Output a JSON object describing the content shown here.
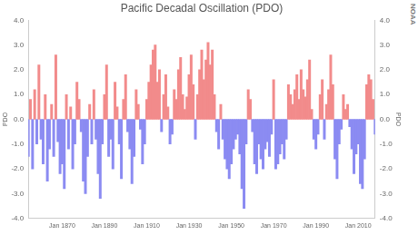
{
  "chart_data": {
    "type": "bar",
    "title": "Pacific Decadal Oscillation (PDO)",
    "y_label": "PDO",
    "y2_label": "PDO",
    "annotation": "NOAA",
    "grid": false,
    "categories": [
      null,
      null,
      null,
      null,
      null,
      null,
      null,
      null,
      null,
      null,
      null,
      null,
      null,
      null,
      null,
      null,
      "Jan 1870",
      null,
      null,
      null,
      null,
      null,
      null,
      null,
      null,
      null,
      null,
      null,
      null,
      null,
      null,
      null,
      null,
      null,
      null,
      null,
      "Jan 1890",
      null,
      null,
      null,
      null,
      null,
      null,
      null,
      null,
      null,
      null,
      null,
      null,
      null,
      null,
      null,
      null,
      null,
      null,
      null,
      "Jan 1910",
      null,
      null,
      null,
      null,
      null,
      null,
      null,
      null,
      null,
      null,
      null,
      null,
      null,
      null,
      null,
      null,
      null,
      null,
      null,
      "Jan 1930",
      null,
      null,
      null,
      null,
      null,
      null,
      null,
      null,
      null,
      null,
      null,
      null,
      null,
      null,
      null,
      null,
      null,
      null,
      null,
      "Jan 1950",
      null,
      null,
      null,
      null,
      null,
      null,
      null,
      null,
      null,
      null,
      null,
      null,
      null,
      null,
      null,
      null,
      null,
      null,
      null,
      "Jan 1970",
      null,
      null,
      null,
      null,
      null,
      null,
      null,
      null,
      null,
      null,
      null,
      null,
      null,
      null,
      null,
      null,
      null,
      null,
      null,
      "Jan 1990",
      null,
      null,
      null,
      null,
      null,
      null,
      null,
      null,
      null,
      null,
      null,
      null,
      null,
      null,
      null,
      null,
      null,
      null,
      null,
      "Jan 2010",
      null,
      null,
      null,
      null,
      null,
      null,
      null,
      null
    ],
    "values": [
      -1.5,
      0.8,
      -2.0,
      1.2,
      -1.0,
      2.2,
      -0.8,
      -1.8,
      1.0,
      -2.5,
      -1.2,
      0.6,
      -1.5,
      2.6,
      -0.9,
      -2.2,
      -1.8,
      -2.8,
      1.0,
      -1.2,
      0.5,
      -2.0,
      -1.0,
      1.5,
      0.8,
      -0.5,
      -2.5,
      -3.0,
      -1.5,
      0.6,
      -1.0,
      1.2,
      -0.8,
      -2.2,
      -3.2,
      -1.0,
      1.0,
      2.2,
      -1.5,
      -0.8,
      -2.0,
      1.5,
      0.5,
      -1.0,
      -2.4,
      0.8,
      1.8,
      -0.5,
      -1.2,
      -2.6,
      -1.5,
      1.2,
      0.6,
      -0.4,
      -1.8,
      -1.0,
      0.8,
      1.5,
      2.2,
      2.8,
      3.0,
      1.5,
      2.0,
      -0.5,
      1.0,
      1.8,
      0.5,
      -1.0,
      -0.6,
      1.2,
      0.8,
      2.0,
      2.5,
      1.0,
      0.4,
      0.9,
      1.8,
      2.6,
      1.4,
      -0.8,
      1.0,
      2.0,
      2.8,
      1.6,
      2.4,
      3.1,
      2.2,
      2.8,
      1.0,
      -0.5,
      -1.2,
      0.6,
      -0.8,
      -1.6,
      -2.0,
      -2.4,
      -1.8,
      -1.2,
      -0.8,
      -0.6,
      -1.4,
      -2.8,
      -3.6,
      -1.0,
      1.2,
      0.8,
      -0.5,
      -1.8,
      -2.2,
      -1.0,
      -1.6,
      -2.0,
      -1.2,
      -0.9,
      -1.5,
      -0.6,
      1.6,
      -2.0,
      -1.8,
      -1.4,
      -1.0,
      -1.6,
      -0.8,
      1.4,
      1.0,
      0.6,
      1.2,
      1.8,
      0.8,
      2.0,
      1.2,
      0.9,
      1.6,
      2.4,
      0.4,
      -0.8,
      -1.2,
      -0.6,
      1.0,
      1.6,
      -0.8,
      0.6,
      1.2,
      2.6,
      1.4,
      -1.6,
      -2.4,
      -1.0,
      -0.4,
      1.0,
      0.4,
      0.6,
      -0.3,
      -1.2,
      -2.2,
      -1.4,
      -1.0,
      -2.6,
      -2.8,
      -1.6,
      1.4,
      1.8,
      1.6,
      0.8,
      -0.6
    ],
    "colors": [
      "#8b8bf2",
      "#f28b8b",
      "#8b8bf2",
      "#f28b8b",
      "#8b8bf2",
      "#f28b8b",
      "#8b8bf2",
      "#8b8bf2",
      "#f28b8b",
      "#8b8bf2",
      "#8b8bf2",
      "#f28b8b",
      "#8b8bf2",
      "#f28b8b",
      "#8b8bf2",
      "#8b8bf2",
      "#8b8bf2",
      "#8b8bf2",
      "#f28b8b",
      "#8b8bf2",
      "#f28b8b",
      "#8b8bf2",
      "#8b8bf2",
      "#f28b8b",
      "#f28b8b",
      "#8b8bf2",
      "#8b8bf2",
      "#8b8bf2",
      "#8b8bf2",
      "#f28b8b",
      "#8b8bf2",
      "#f28b8b",
      "#8b8bf2",
      "#8b8bf2",
      "#8b8bf2",
      "#8b8bf2",
      "#f28b8b",
      "#f28b8b",
      "#8b8bf2",
      "#8b8bf2",
      "#8b8bf2",
      "#f28b8b",
      "#f28b8b",
      "#8b8bf2",
      "#8b8bf2",
      "#f28b8b",
      "#f28b8b",
      "#8b8bf2",
      "#8b8bf2",
      "#8b8bf2",
      "#8b8bf2",
      "#f28b8b",
      "#f28b8b",
      "#8b8bf2",
      "#8b8bf2",
      "#8b8bf2",
      "#f28b8b",
      "#f28b8b",
      "#f28b8b",
      "#f28b8b",
      "#f28b8b",
      "#f28b8b",
      "#f28b8b",
      "#8b8bf2",
      "#f28b8b",
      "#f28b8b",
      "#f28b8b",
      "#8b8bf2",
      "#8b8bf2",
      "#f28b8b",
      "#f28b8b",
      "#f28b8b",
      "#f28b8b",
      "#f28b8b",
      "#f28b8b",
      "#f28b8b",
      "#f28b8b",
      "#f28b8b",
      "#f28b8b",
      "#8b8bf2",
      "#f28b8b",
      "#f28b8b",
      "#f28b8b",
      "#f28b8b",
      "#f28b8b",
      "#f28b8b",
      "#f28b8b",
      "#f28b8b",
      "#f28b8b",
      "#8b8bf2",
      "#8b8bf2",
      "#f28b8b",
      "#8b8bf2",
      "#8b8bf2",
      "#8b8bf2",
      "#8b8bf2",
      "#8b8bf2",
      "#8b8bf2",
      "#8b8bf2",
      "#8b8bf2",
      "#8b8bf2",
      "#8b8bf2",
      "#8b8bf2",
      "#8b8bf2",
      "#f28b8b",
      "#f28b8b",
      "#8b8bf2",
      "#8b8bf2",
      "#8b8bf2",
      "#8b8bf2",
      "#8b8bf2",
      "#8b8bf2",
      "#8b8bf2",
      "#8b8bf2",
      "#8b8bf2",
      "#8b8bf2",
      "#f28b8b",
      "#8b8bf2",
      "#8b8bf2",
      "#8b8bf2",
      "#8b8bf2",
      "#8b8bf2",
      "#8b8bf2",
      "#f28b8b",
      "#f28b8b",
      "#f28b8b",
      "#f28b8b",
      "#f28b8b",
      "#f28b8b",
      "#f28b8b",
      "#f28b8b",
      "#f28b8b",
      "#f28b8b",
      "#f28b8b",
      "#f28b8b",
      "#8b8bf2",
      "#8b8bf2",
      "#8b8bf2",
      "#f28b8b",
      "#f28b8b",
      "#8b8bf2",
      "#f28b8b",
      "#f28b8b",
      "#f28b8b",
      "#f28b8b",
      "#8b8bf2",
      "#8b8bf2",
      "#8b8bf2",
      "#8b8bf2",
      "#f28b8b",
      "#f28b8b",
      "#f28b8b",
      "#8b8bf2",
      "#8b8bf2",
      "#8b8bf2",
      "#8b8bf2",
      "#8b8bf2",
      "#8b8bf2",
      "#8b8bf2",
      "#8b8bf2",
      "#f28b8b",
      "#f28b8b",
      "#f28b8b",
      "#f28b8b",
      "#8b8bf2"
    ],
    "ylim": [
      -4,
      4
    ],
    "yticks": [
      {
        "value": -4,
        "label": "-4.0"
      },
      {
        "value": -3,
        "label": "-3.0"
      },
      {
        "value": -2,
        "label": "-2.0"
      },
      {
        "value": -1,
        "label": "-1.0"
      },
      {
        "value": 0,
        "label": "0.0"
      },
      {
        "value": 1,
        "label": "1.0"
      },
      {
        "value": 2,
        "label": "2.0"
      },
      {
        "value": 3,
        "label": "3.0"
      },
      {
        "value": 4,
        "label": "4.0"
      }
    ],
    "y2lim": [
      -4,
      4
    ],
    "y2ticks": [
      {
        "value": -4,
        "label": "-4.0"
      },
      {
        "value": -3,
        "label": "-3.0"
      },
      {
        "value": -2,
        "label": "-2.0"
      },
      {
        "value": -1,
        "label": "-1.0"
      },
      {
        "value": 0,
        "label": "0.0"
      },
      {
        "value": 1,
        "label": "1.0"
      },
      {
        "value": 2,
        "label": "2.0"
      },
      {
        "value": 3,
        "label": "3.0"
      },
      {
        "value": 4,
        "label": "4.0"
      }
    ]
  }
}
